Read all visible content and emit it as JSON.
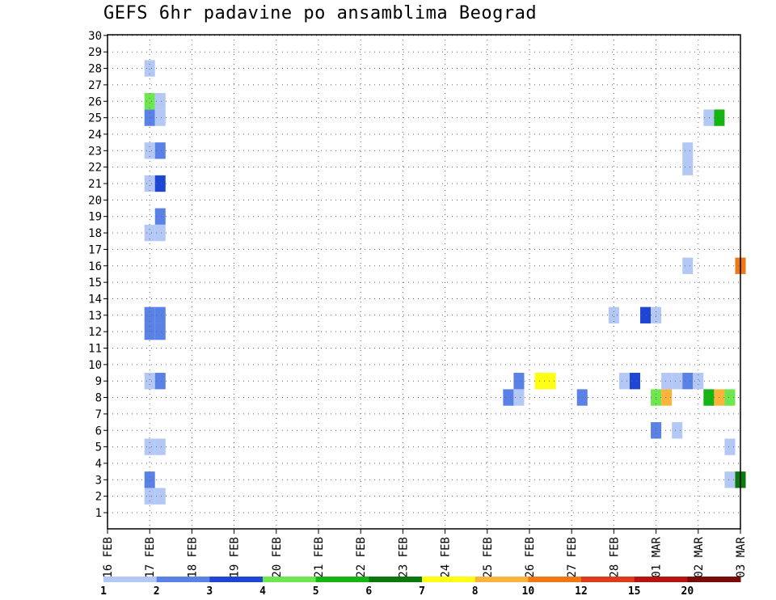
{
  "chart_data": {
    "type": "heatmap",
    "title": "GEFS 6hr padavine po ansamblima Beograd",
    "x_tick_labels": [
      "16 FEB",
      "17 FEB",
      "18 FEB",
      "19 FEB",
      "20 FEB",
      "21 FEB",
      "22 FEB",
      "23 FEB",
      "24 FEB",
      "25 FEB",
      "26 FEB",
      "27 FEB",
      "28 FEB",
      "01 MAR",
      "02 MAR",
      "03 MAR"
    ],
    "y_tick_labels": [
      "1",
      "2",
      "3",
      "4",
      "5",
      "6",
      "7",
      "8",
      "9",
      "10",
      "11",
      "12",
      "13",
      "14",
      "15",
      "16",
      "17",
      "18",
      "19",
      "20",
      "21",
      "22",
      "23",
      "24",
      "25",
      "26",
      "27",
      "28",
      "29",
      "30"
    ],
    "xlim_days": [
      0,
      15
    ],
    "ylim": [
      1,
      30
    ],
    "grid": true,
    "colorbar": {
      "colors": [
        "#b4c8f5",
        "#5a82e6",
        "#1e46d2",
        "#6ee650",
        "#14b414",
        "#0a780a",
        "#ffff14",
        "#fab43c",
        "#f07814",
        "#dc3c1e",
        "#b41414",
        "#780a0a"
      ],
      "labels": [
        "1",
        "2",
        "3",
        "4",
        "5",
        "6",
        "7",
        "8",
        "10",
        "12",
        "15",
        "20"
      ]
    },
    "cells": [
      {
        "d": 1.0,
        "m": 28,
        "v": 1
      },
      {
        "d": 1.0,
        "m": 26,
        "v": 4
      },
      {
        "d": 1.25,
        "m": 26,
        "v": 1
      },
      {
        "d": 1.0,
        "m": 25,
        "v": 2
      },
      {
        "d": 1.25,
        "m": 25,
        "v": 1
      },
      {
        "d": 1.0,
        "m": 23,
        "v": 1
      },
      {
        "d": 1.25,
        "m": 23,
        "v": 2
      },
      {
        "d": 1.0,
        "m": 21,
        "v": 1
      },
      {
        "d": 1.25,
        "m": 21,
        "v": 3
      },
      {
        "d": 1.25,
        "m": 19,
        "v": 2
      },
      {
        "d": 1.0,
        "m": 18,
        "v": 1
      },
      {
        "d": 1.25,
        "m": 18,
        "v": 1
      },
      {
        "d": 1.0,
        "m": 13,
        "v": 2
      },
      {
        "d": 1.25,
        "m": 13,
        "v": 2
      },
      {
        "d": 1.0,
        "m": 12,
        "v": 2
      },
      {
        "d": 1.25,
        "m": 12,
        "v": 2
      },
      {
        "d": 1.0,
        "m": 9,
        "v": 1
      },
      {
        "d": 1.25,
        "m": 9,
        "v": 2
      },
      {
        "d": 1.0,
        "m": 5,
        "v": 1
      },
      {
        "d": 1.25,
        "m": 5,
        "v": 1
      },
      {
        "d": 1.0,
        "m": 3,
        "v": 2
      },
      {
        "d": 1.0,
        "m": 2,
        "v": 1
      },
      {
        "d": 1.25,
        "m": 2,
        "v": 1
      },
      {
        "d": 9.5,
        "m": 8,
        "v": 2
      },
      {
        "d": 9.75,
        "m": 8,
        "v": 1
      },
      {
        "d": 9.75,
        "m": 9,
        "v": 2
      },
      {
        "d": 10.25,
        "m": 9,
        "v": 7
      },
      {
        "d": 10.5,
        "m": 9,
        "v": 7
      },
      {
        "d": 11.25,
        "m": 8,
        "v": 2
      },
      {
        "d": 12.25,
        "m": 9,
        "v": 1
      },
      {
        "d": 12.5,
        "m": 9,
        "v": 3
      },
      {
        "d": 12.0,
        "m": 13,
        "v": 1
      },
      {
        "d": 12.75,
        "m": 13,
        "v": 3
      },
      {
        "d": 13.0,
        "m": 13,
        "v": 1
      },
      {
        "d": 13.0,
        "m": 8,
        "v": 4
      },
      {
        "d": 13.25,
        "m": 8,
        "v": 8
      },
      {
        "d": 13.25,
        "m": 9,
        "v": 1
      },
      {
        "d": 13.5,
        "m": 9,
        "v": 1
      },
      {
        "d": 13.75,
        "m": 9,
        "v": 2
      },
      {
        "d": 14.0,
        "m": 9,
        "v": 1
      },
      {
        "d": 13.0,
        "m": 6,
        "v": 2
      },
      {
        "d": 13.5,
        "m": 6,
        "v": 1
      },
      {
        "d": 13.75,
        "m": 22,
        "v": 1
      },
      {
        "d": 13.75,
        "m": 23,
        "v": 1
      },
      {
        "d": 13.75,
        "m": 16,
        "v": 1
      },
      {
        "d": 14.25,
        "m": 25,
        "v": 1
      },
      {
        "d": 14.5,
        "m": 25,
        "v": 5
      },
      {
        "d": 14.25,
        "m": 8,
        "v": 5
      },
      {
        "d": 14.5,
        "m": 8,
        "v": 8
      },
      {
        "d": 14.75,
        "m": 8,
        "v": 4
      },
      {
        "d": 15.0,
        "m": 16,
        "v": 9
      },
      {
        "d": 14.75,
        "m": 5,
        "v": 1
      },
      {
        "d": 14.75,
        "m": 3,
        "v": 1
      },
      {
        "d": 15.0,
        "m": 3,
        "v": 6
      }
    ]
  }
}
